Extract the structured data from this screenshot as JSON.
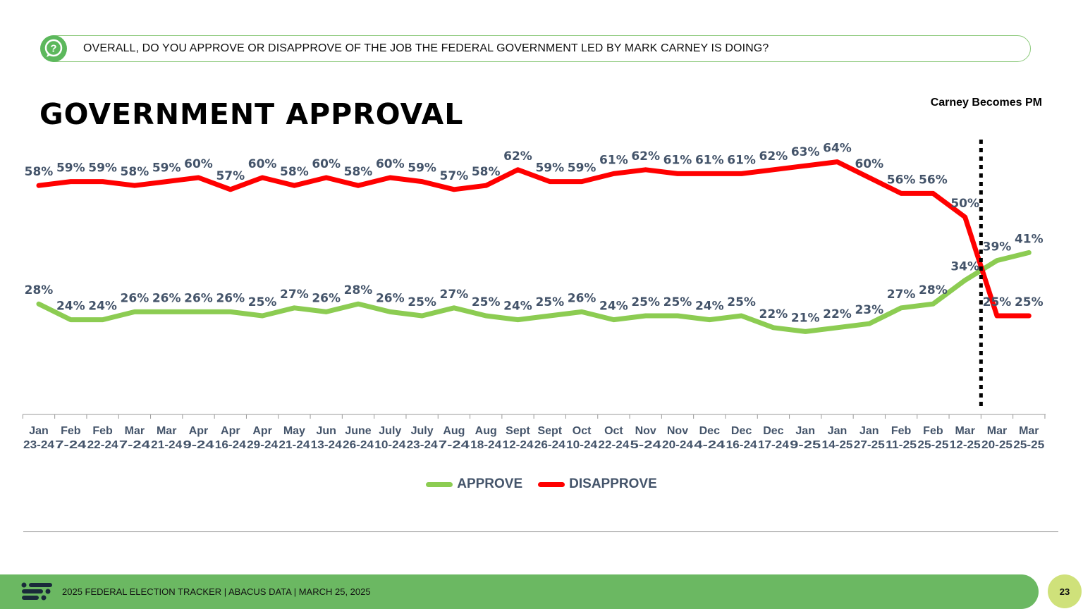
{
  "header": {
    "question": "OVERALL, DO YOU APPROVE OR DISAPPROVE OF THE JOB THE FEDERAL GOVERNMENT LED BY MARK CARNEY IS DOING?",
    "question_icon": "question-speech-bubble-icon"
  },
  "chart_data": {
    "type": "line",
    "title": "GOVERNMENT APPROVAL",
    "annotation": "Carney Becomes PM",
    "annotation_after_index": 29,
    "categories": [
      [
        "Jan",
        "23-24"
      ],
      [
        "Feb",
        "7-24"
      ],
      [
        "Feb",
        "22-24"
      ],
      [
        "Mar",
        "7-24"
      ],
      [
        "Mar",
        "21-24"
      ],
      [
        "Apr",
        "9-24"
      ],
      [
        "Apr",
        "16-24"
      ],
      [
        "Apr",
        "29-24"
      ],
      [
        "May",
        "21-24"
      ],
      [
        "Jun",
        "13-24"
      ],
      [
        "June",
        "26-24"
      ],
      [
        "July",
        "10-24"
      ],
      [
        "July",
        "23-24"
      ],
      [
        "Aug",
        "7-24"
      ],
      [
        "Aug",
        "18-24"
      ],
      [
        "Sept",
        "12-24"
      ],
      [
        "Sept",
        "26-24"
      ],
      [
        "Oct",
        "10-24"
      ],
      [
        "Oct",
        "22-24"
      ],
      [
        "Nov",
        "5-24"
      ],
      [
        "Nov",
        "20-24"
      ],
      [
        "Dec",
        "4-24"
      ],
      [
        "Dec",
        "16-24"
      ],
      [
        "Dec",
        "17-24"
      ],
      [
        "Jan",
        "9-25"
      ],
      [
        "Jan",
        "14-25"
      ],
      [
        "Jan",
        "27-25"
      ],
      [
        "Feb",
        "11-25"
      ],
      [
        "Feb",
        "25-25"
      ],
      [
        "Mar",
        "12-25"
      ],
      [
        "Mar",
        "20-25"
      ],
      [
        "Mar",
        "25-25"
      ]
    ],
    "series": [
      {
        "name": "APPROVE",
        "color": "#8ccc52",
        "values": [
          28,
          24,
          24,
          26,
          26,
          26,
          26,
          25,
          27,
          26,
          28,
          26,
          25,
          27,
          25,
          24,
          25,
          26,
          24,
          25,
          25,
          24,
          25,
          22,
          21,
          22,
          23,
          27,
          28,
          34,
          39,
          41
        ]
      },
      {
        "name": "DISAPPROVE",
        "color": "#ff0000",
        "values": [
          58,
          59,
          59,
          58,
          59,
          60,
          57,
          60,
          58,
          60,
          58,
          60,
          59,
          57,
          58,
          62,
          59,
          59,
          61,
          62,
          61,
          61,
          61,
          62,
          63,
          64,
          60,
          56,
          56,
          50,
          25,
          25
        ]
      }
    ],
    "value_suffix": "%",
    "ylim": [
      0,
      80
    ],
    "grid": false,
    "legend_position": "bottom-center"
  },
  "footer": {
    "text": "2025 FEDERAL ELECTION TRACKER  |  ABACUS DATA  |  MARCH 25, 2025",
    "page_number": "23",
    "logo_icon": "abacus-logo-icon"
  }
}
